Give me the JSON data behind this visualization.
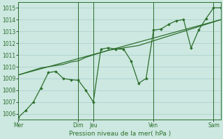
{
  "bg_color": "#cce8e0",
  "grid_color": "#aacccc",
  "line_color": "#2d6e2d",
  "marker_color": "#2d6e2d",
  "ylabel_ticks": [
    1006,
    1007,
    1008,
    1009,
    1010,
    1011,
    1012,
    1013,
    1014,
    1015
  ],
  "xlabel": "Pression niveau de la mer( hPa )",
  "xlabel_color": "#2d6e2d",
  "day_labels": [
    "Mer",
    "Dim",
    "Jeu",
    "Ven",
    "Sam"
  ],
  "day_positions": [
    0.0,
    0.296,
    0.37,
    0.667,
    0.963
  ],
  "ylim": [
    1005.5,
    1015.5
  ],
  "xlim": [
    0.0,
    1.0
  ],
  "jagged_x": [
    0.0,
    0.037,
    0.074,
    0.111,
    0.148,
    0.185,
    0.222,
    0.259,
    0.296,
    0.333,
    0.37,
    0.407,
    0.444,
    0.481,
    0.519,
    0.556,
    0.593,
    0.63,
    0.667,
    0.704,
    0.741,
    0.778,
    0.815,
    0.852,
    0.889,
    0.926,
    0.963,
    1.0
  ],
  "jagged_y": [
    1005.7,
    1006.3,
    1007.0,
    1008.2,
    1009.5,
    1009.6,
    1009.0,
    1008.9,
    1008.85,
    1008.0,
    1007.0,
    1011.5,
    1011.6,
    1011.5,
    1011.5,
    1010.5,
    1008.6,
    1009.0,
    1013.1,
    1013.2,
    1013.6,
    1013.9,
    1014.0,
    1011.6,
    1013.1,
    1014.1,
    1015.0,
    1015.0
  ],
  "trend_x": [
    0.0,
    1.0
  ],
  "trend_y": [
    1009.3,
    1014.0
  ],
  "smooth_x": [
    0.0,
    0.037,
    0.074,
    0.111,
    0.148,
    0.185,
    0.222,
    0.259,
    0.296,
    0.333,
    0.37,
    0.407,
    0.444,
    0.481,
    0.519,
    0.556,
    0.593,
    0.63,
    0.667,
    0.704,
    0.741,
    0.778,
    0.815,
    0.852,
    0.889,
    0.926,
    0.963,
    1.0
  ],
  "smooth_y": [
    1009.3,
    1009.5,
    1009.7,
    1009.9,
    1010.0,
    1010.1,
    1010.2,
    1010.4,
    1010.5,
    1010.8,
    1011.0,
    1011.2,
    1011.4,
    1011.5,
    1011.6,
    1011.7,
    1011.8,
    1012.0,
    1012.2,
    1012.4,
    1012.6,
    1012.8,
    1013.0,
    1013.2,
    1013.4,
    1013.6,
    1013.8,
    1014.0
  ]
}
